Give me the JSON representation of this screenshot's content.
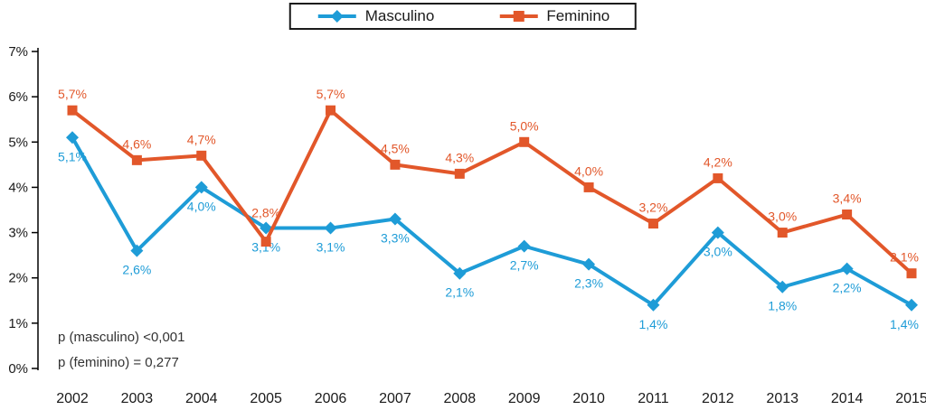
{
  "chart_data": {
    "type": "line",
    "title": "",
    "xlabel": "",
    "ylabel": "",
    "categories": [
      "2002",
      "2003",
      "2004",
      "2005",
      "2006",
      "2007",
      "2008",
      "2009",
      "2010",
      "2011",
      "2012",
      "2013",
      "2014",
      "2015"
    ],
    "ylim": [
      0,
      7
    ],
    "ytick_step": 1,
    "ytick_suffix": "%",
    "grid": "off",
    "legend_position": "top",
    "series": [
      {
        "name": "Masculino",
        "color": "#1e9cd7",
        "marker": "diamond",
        "label_position": "below",
        "values": [
          5.1,
          2.6,
          4.0,
          3.1,
          3.1,
          3.3,
          2.1,
          2.7,
          2.3,
          1.4,
          3.0,
          1.8,
          2.2,
          1.4
        ],
        "labels": [
          "5,1%",
          "2,6%",
          "4,0%",
          "3,1%",
          "3,1%",
          "3,3%",
          "2,1%",
          "2,7%",
          "2,3%",
          "1,4%",
          "3,0%",
          "1,8%",
          "2,2%",
          "1,4%"
        ],
        "label_dy": {}
      },
      {
        "name": "Feminino",
        "color": "#e2572a",
        "marker": "square",
        "label_position": "above",
        "values": [
          5.7,
          4.6,
          4.7,
          2.8,
          5.7,
          4.5,
          4.3,
          5.0,
          4.0,
          3.2,
          4.2,
          3.0,
          3.4,
          2.1
        ],
        "labels": [
          "5,7%",
          "4,6%",
          "4,7%",
          "2,8%",
          "5,7%",
          "4,5%",
          "4,3%",
          "5,0%",
          "4,0%",
          "3,2%",
          "4,2%",
          "3,0%",
          "3,4%",
          "2,1%"
        ],
        "label_dy": {
          "3": -14
        }
      }
    ],
    "annotations": [
      "p (masculino) <0,001",
      "p (feminino) = 0,277"
    ]
  }
}
